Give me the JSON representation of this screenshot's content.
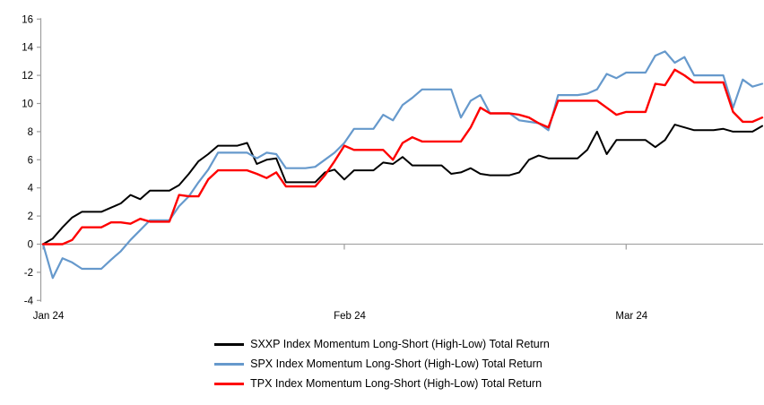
{
  "chart_data": {
    "type": "line",
    "title": "",
    "x_axis": {
      "tick_labels": [
        "Jan 24",
        "Feb 24",
        "Mar 24"
      ],
      "tick_day_indices": [
        0,
        31,
        60
      ],
      "total_points": 75
    },
    "y_axis": {
      "min": -4,
      "max": 16,
      "step": 2,
      "ticks": [
        16,
        14,
        12,
        10,
        8,
        6,
        4,
        2,
        0,
        -2,
        -4
      ]
    },
    "grid": {
      "zero_line_only": true,
      "zero_line_color": "#a6a6a6",
      "axis_color": "#9e9e9e"
    },
    "legend_position": "bottom",
    "series": [
      {
        "name": "SXXP Index Momentum Long-Short (High-Low) Total Return",
        "color": "#000000",
        "stroke_width": 2,
        "values": [
          0,
          0.4,
          1.2,
          1.9,
          2.3,
          2.3,
          2.3,
          2.6,
          2.9,
          3.5,
          3.2,
          3.8,
          3.8,
          3.8,
          4.2,
          5.0,
          5.9,
          6.4,
          7.0,
          7.0,
          7.0,
          7.2,
          5.7,
          6.0,
          6.1,
          4.4,
          4.4,
          4.4,
          4.4,
          5.1,
          5.3,
          4.6,
          5.25,
          5.25,
          5.25,
          5.8,
          5.7,
          6.2,
          5.6,
          5.6,
          5.6,
          5.6,
          5.0,
          5.1,
          5.4,
          5.0,
          4.9,
          4.9,
          4.9,
          5.1,
          6.0,
          6.3,
          6.1,
          6.1,
          6.1,
          6.1,
          6.7,
          8.0,
          6.4,
          7.4,
          7.4,
          7.4,
          7.4,
          6.9,
          7.4,
          8.5,
          8.3,
          8.1,
          8.1,
          8.1,
          8.2,
          8.0,
          8.0,
          8.0,
          8.4
        ]
      },
      {
        "name": "SPX Index Momentum Long-Short (High-Low) Total Return",
        "color": "#6699cc",
        "stroke_width": 2.2,
        "values": [
          0,
          -2.4,
          -1.0,
          -1.3,
          -1.75,
          -1.75,
          -1.75,
          -1.1,
          -0.5,
          0.3,
          1.0,
          1.7,
          1.7,
          1.7,
          2.7,
          3.4,
          4.4,
          5.3,
          6.5,
          6.5,
          6.5,
          6.5,
          6.1,
          6.5,
          6.4,
          5.4,
          5.4,
          5.4,
          5.5,
          6.0,
          6.5,
          7.2,
          8.2,
          8.2,
          8.2,
          9.2,
          8.8,
          9.9,
          10.4,
          11.0,
          11.0,
          11.0,
          11.0,
          9.0,
          10.2,
          10.6,
          9.3,
          9.3,
          9.3,
          8.8,
          8.7,
          8.6,
          8.1,
          10.6,
          10.6,
          10.6,
          10.7,
          11.0,
          12.1,
          11.8,
          12.2,
          12.2,
          12.2,
          13.4,
          13.7,
          12.9,
          13.3,
          12.0,
          12.0,
          12.0,
          12.0,
          9.7,
          11.7,
          11.2,
          11.4
        ]
      },
      {
        "name": "TPX Index Momentum Long-Short (High-Low) Total Return",
        "color": "#fe0000",
        "stroke_width": 2.4,
        "values": [
          0,
          0,
          0,
          0.3,
          1.2,
          1.2,
          1.2,
          1.55,
          1.55,
          1.45,
          1.8,
          1.6,
          1.6,
          1.6,
          3.5,
          3.4,
          3.4,
          4.6,
          5.25,
          5.25,
          5.25,
          5.25,
          5.0,
          4.7,
          5.1,
          4.1,
          4.1,
          4.1,
          4.1,
          4.9,
          5.9,
          7.0,
          6.7,
          6.7,
          6.7,
          6.7,
          6.0,
          7.2,
          7.6,
          7.3,
          7.3,
          7.3,
          7.3,
          7.3,
          8.3,
          9.7,
          9.3,
          9.3,
          9.3,
          9.2,
          9.0,
          8.6,
          8.3,
          10.2,
          10.2,
          10.2,
          10.2,
          10.2,
          9.7,
          9.2,
          9.4,
          9.4,
          9.4,
          11.4,
          11.3,
          12.4,
          12.0,
          11.5,
          11.5,
          11.5,
          11.5,
          9.4,
          8.7,
          8.7,
          9.0
        ]
      }
    ]
  }
}
